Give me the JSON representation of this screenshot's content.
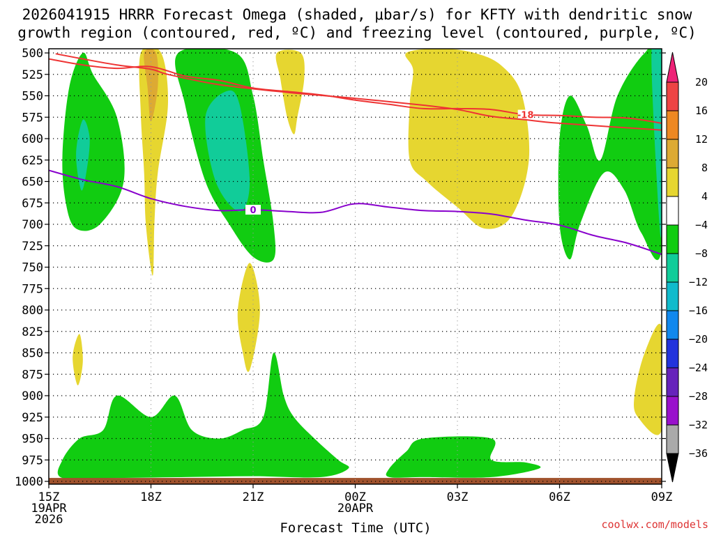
{
  "chart_data": {
    "type": "time-height cross section",
    "title_lines": [
      "2026041915 HRRR Forecast Omega (shaded, μbar/s) for KFTY with dendritic snow",
      "growth region (contoured, red, ºC) and freezing level (contoured, purple, ºC)"
    ],
    "xlabel": "Forecast Time (UTC)",
    "credit": "coolwx.com/models",
    "x_range_hours": [
      0,
      18
    ],
    "x_ticks": [
      {
        "h": 0,
        "lines": [
          "15Z",
          "19APR",
          "2026"
        ]
      },
      {
        "h": 3,
        "lines": [
          "18Z"
        ]
      },
      {
        "h": 6,
        "lines": [
          "21Z"
        ]
      },
      {
        "h": 9,
        "lines": [
          "00Z",
          "20APR"
        ]
      },
      {
        "h": 12,
        "lines": [
          "03Z"
        ]
      },
      {
        "h": 15,
        "lines": [
          "06Z"
        ]
      },
      {
        "h": 18,
        "lines": [
          "09Z"
        ]
      }
    ],
    "y_range_mb": [
      1000,
      500
    ],
    "y_ticks": [
      "500",
      "525",
      "550",
      "575",
      "600",
      "625",
      "650",
      "675",
      "700",
      "725",
      "750",
      "775",
      "800",
      "825",
      "850",
      "875",
      "900",
      "925",
      "950",
      "975",
      "1000"
    ],
    "omega_levels": [
      "20",
      "16",
      "12",
      "8",
      "4",
      "−4",
      "−8",
      "−12",
      "−16",
      "−20",
      "−24",
      "−28",
      "−32",
      "−36"
    ],
    "omega_colors": [
      "#ee2277",
      "#ee4444",
      "#ee8822",
      "#ddaa33",
      "#e6d630",
      "#ffffff",
      "#11cc11",
      "#11cc99",
      "#11bbcc",
      "#1188ee",
      "#2233dd",
      "#6622bb",
      "#9911cc",
      "#aaaaaa",
      "#000000"
    ],
    "dgz_contours": [
      {
        "label": "-18",
        "label_h": 14.0,
        "color": "#ee3333",
        "points": [
          [
            0,
            507
          ],
          [
            1,
            514
          ],
          [
            2,
            518
          ],
          [
            3,
            516
          ],
          [
            4,
            527
          ],
          [
            5,
            532
          ],
          [
            6,
            541
          ],
          [
            7,
            545
          ],
          [
            8,
            549
          ],
          [
            9,
            555
          ],
          [
            10,
            560
          ],
          [
            11,
            565
          ],
          [
            12,
            565
          ],
          [
            13,
            566
          ],
          [
            14,
            572
          ],
          [
            15,
            573
          ],
          [
            16,
            575
          ],
          [
            17,
            576
          ],
          [
            18,
            582
          ]
        ]
      },
      {
        "label": "",
        "label_h": null,
        "color": "#ee3333",
        "points": [
          [
            0.2,
            501
          ],
          [
            1,
            507
          ],
          [
            2,
            514
          ],
          [
            3,
            519
          ],
          [
            3.5,
            525
          ],
          [
            5,
            537
          ],
          [
            7,
            546
          ],
          [
            9,
            553
          ],
          [
            11,
            561
          ],
          [
            12,
            566
          ],
          [
            13,
            574
          ],
          [
            14,
            578
          ],
          [
            15,
            582
          ],
          [
            18,
            590
          ]
        ]
      }
    ],
    "freezing_level": {
      "label": "0",
      "label_h": 6.0,
      "color": "#8800cc",
      "points": [
        [
          0,
          637
        ],
        [
          1,
          648
        ],
        [
          2,
          656
        ],
        [
          3,
          670
        ],
        [
          4,
          679
        ],
        [
          5,
          684
        ],
        [
          6,
          683
        ],
        [
          7,
          685
        ],
        [
          8,
          686
        ],
        [
          9,
          676
        ],
        [
          10,
          680
        ],
        [
          11,
          684
        ],
        [
          12,
          685
        ],
        [
          13,
          688
        ],
        [
          14,
          695
        ],
        [
          15,
          701
        ],
        [
          16,
          713
        ],
        [
          17,
          722
        ],
        [
          18,
          735
        ]
      ]
    },
    "omega_regions": [
      {
        "value": "-4 to -8",
        "color": "#11cc11",
        "points": [
          [
            0.4,
            620
          ],
          [
            0.6,
            540
          ],
          [
            1.0,
            500
          ],
          [
            1.3,
            525
          ],
          [
            2.0,
            575
          ],
          [
            2.2,
            650
          ],
          [
            1.5,
            700
          ],
          [
            0.8,
            705
          ],
          [
            0.5,
            675
          ]
        ]
      },
      {
        "value": "-8 to -12",
        "color": "#11cc99",
        "points": [
          [
            0.8,
            618
          ],
          [
            1.0,
            578
          ],
          [
            1.2,
            600
          ],
          [
            1.1,
            640
          ],
          [
            0.95,
            660
          ]
        ]
      },
      {
        "value": "-4 to -8",
        "color": "#11cc11",
        "points": [
          [
            3.8,
            500
          ],
          [
            5.5,
            500
          ],
          [
            6.0,
            550
          ],
          [
            6.3,
            625
          ],
          [
            6.6,
            700
          ],
          [
            6.6,
            741
          ],
          [
            6.0,
            738
          ],
          [
            5.3,
            700
          ],
          [
            4.6,
            650
          ],
          [
            4.0,
            560
          ]
        ]
      },
      {
        "value": "-8 to -12",
        "color": "#11cc99",
        "points": [
          [
            4.6,
            575
          ],
          [
            5.2,
            545
          ],
          [
            5.6,
            560
          ],
          [
            5.9,
            650
          ],
          [
            5.6,
            685
          ],
          [
            4.9,
            650
          ]
        ]
      },
      {
        "value": "-4 to -8",
        "color": "#11cc11",
        "points": [
          [
            15.0,
            600
          ],
          [
            15.3,
            550
          ],
          [
            15.8,
            585
          ],
          [
            16.2,
            625
          ],
          [
            16.7,
            550
          ],
          [
            17.5,
            500
          ],
          [
            18.0,
            500
          ],
          [
            18.0,
            728
          ],
          [
            17.4,
            710
          ],
          [
            16.9,
            660
          ],
          [
            16.3,
            640
          ],
          [
            15.6,
            700
          ],
          [
            15.3,
            741
          ],
          [
            15.0,
            700
          ]
        ]
      },
      {
        "value": "-8 to -12",
        "color": "#11cc99",
        "points": [
          [
            17.7,
            500
          ],
          [
            18.0,
            500
          ],
          [
            18.0,
            700
          ],
          [
            17.9,
            680
          ]
        ]
      },
      {
        "value": "-4 to -8",
        "color": "#11cc11",
        "points": [
          [
            0.4,
            975
          ],
          [
            0.9,
            950
          ],
          [
            1.6,
            940
          ],
          [
            2.0,
            900
          ],
          [
            3.0,
            925
          ],
          [
            3.7,
            900
          ],
          [
            4.2,
            940
          ],
          [
            5.0,
            950
          ],
          [
            5.7,
            940
          ],
          [
            6.3,
            925
          ],
          [
            6.6,
            850
          ],
          [
            6.9,
            900
          ],
          [
            7.2,
            925
          ],
          [
            7.8,
            950
          ],
          [
            8.5,
            975
          ],
          [
            8.8,
            985
          ],
          [
            8.0,
            995
          ],
          [
            6.0,
            994
          ],
          [
            4.0,
            995
          ],
          [
            2.0,
            996
          ],
          [
            0.4,
            996
          ]
        ]
      },
      {
        "value": "-4 to -8",
        "color": "#11cc11",
        "points": [
          [
            10.0,
            985
          ],
          [
            10.5,
            965
          ],
          [
            11.0,
            950
          ],
          [
            13.0,
            950
          ],
          [
            13.0,
            975
          ],
          [
            14.0,
            978
          ],
          [
            14.4,
            985
          ],
          [
            13.0,
            995
          ],
          [
            11.0,
            995
          ],
          [
            10.0,
            995
          ]
        ]
      },
      {
        "value": "4 to 8",
        "color": "#e6d630",
        "points": [
          [
            2.7,
            500
          ],
          [
            3.3,
            500
          ],
          [
            3.5,
            560
          ],
          [
            3.2,
            640
          ],
          [
            3.1,
            700
          ],
          [
            3.05,
            760
          ],
          [
            2.85,
            700
          ],
          [
            2.8,
            640
          ],
          [
            2.7,
            570
          ]
        ]
      },
      {
        "value": "8 to 12",
        "color": "#ddaa33",
        "points": [
          [
            2.8,
            500
          ],
          [
            3.15,
            500
          ],
          [
            3.2,
            540
          ],
          [
            3.0,
            580
          ],
          [
            2.9,
            540
          ]
        ]
      },
      {
        "value": "4 to 8",
        "color": "#e6d630",
        "points": [
          [
            6.7,
            500
          ],
          [
            7.4,
            500
          ],
          [
            7.5,
            530
          ],
          [
            7.3,
            575
          ],
          [
            7.2,
            595
          ],
          [
            7.0,
            575
          ],
          [
            6.8,
            530
          ]
        ]
      },
      {
        "value": "4 to 8",
        "color": "#e6d630",
        "points": [
          [
            10.5,
            500
          ],
          [
            11.5,
            495
          ],
          [
            12.5,
            500
          ],
          [
            13.3,
            515
          ],
          [
            13.9,
            550
          ],
          [
            14.1,
            625
          ],
          [
            13.6,
            690
          ],
          [
            12.8,
            705
          ],
          [
            12.0,
            680
          ],
          [
            11.1,
            650
          ],
          [
            10.6,
            625
          ],
          [
            10.6,
            560
          ],
          [
            10.7,
            520
          ]
        ]
      },
      {
        "value": "4 to 8",
        "color": "#e6d630",
        "points": [
          [
            5.55,
            800
          ],
          [
            5.9,
            745
          ],
          [
            6.2,
            800
          ],
          [
            5.9,
            870
          ],
          [
            5.7,
            850
          ]
        ]
      },
      {
        "value": "4 to 8",
        "color": "#e6d630",
        "points": [
          [
            0.7,
            855
          ],
          [
            0.9,
            828
          ],
          [
            1.0,
            860
          ],
          [
            0.85,
            888
          ]
        ]
      },
      {
        "value": "4 to 8",
        "color": "#e6d630",
        "points": [
          [
            17.2,
            900
          ],
          [
            17.5,
            850
          ],
          [
            18.0,
            820
          ],
          [
            18.0,
            940
          ],
          [
            17.3,
            925
          ]
        ]
      }
    ],
    "ground_color": "#a0522d"
  }
}
